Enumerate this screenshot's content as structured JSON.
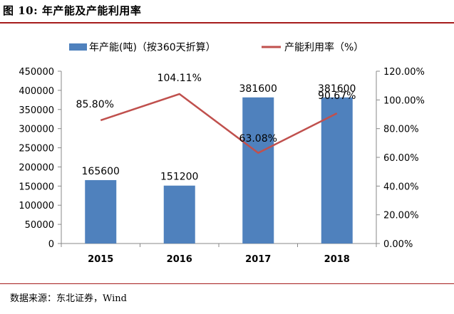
{
  "figure": {
    "title": "图 10:  年产能及产能利用率",
    "source": "数据来源：东北证券，Wind"
  },
  "chart_data": {
    "type": "bar",
    "categories": [
      "2015",
      "2016",
      "2017",
      "2018"
    ],
    "series": [
      {
        "name": "年产能(吨)（按360天折算）",
        "type": "bar",
        "axis": "left",
        "color": "#4f81bd",
        "values": [
          165600,
          151200,
          381600,
          381600
        ],
        "labels": [
          "165600",
          "151200",
          "381600",
          "381600"
        ]
      },
      {
        "name": "产能利用率（%）",
        "type": "line",
        "axis": "right",
        "color": "#c0504d",
        "values": [
          85.8,
          104.11,
          63.08,
          90.67
        ],
        "labels": [
          "85.80%",
          "104.11%",
          "63.08%",
          "90.67%"
        ]
      }
    ],
    "y_left": {
      "min": 0,
      "max": 450000,
      "step": 50000,
      "ticks": [
        "0",
        "50000",
        "100000",
        "150000",
        "200000",
        "250000",
        "300000",
        "350000",
        "400000",
        "450000"
      ]
    },
    "y_right": {
      "min": 0,
      "max": 120,
      "step": 20,
      "ticks": [
        "0.00%",
        "20.00%",
        "40.00%",
        "60.00%",
        "80.00%",
        "100.00%",
        "120.00%"
      ]
    },
    "legend": "top",
    "grid": false
  }
}
